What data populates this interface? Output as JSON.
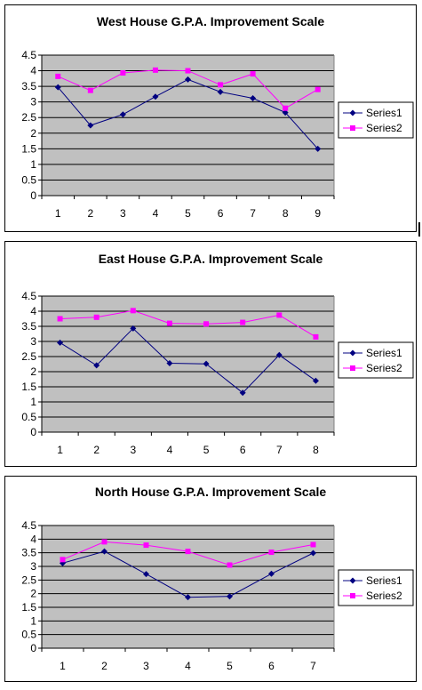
{
  "colors": {
    "series1": "#000080",
    "series2": "#FF00FF",
    "plot_bg": "#C0C0C0",
    "grid": "#000000"
  },
  "chart_data": [
    {
      "type": "line",
      "title": "West House G.P.A. Improvement Scale",
      "categories": [
        "1",
        "2",
        "3",
        "4",
        "5",
        "6",
        "7",
        "8",
        "9"
      ],
      "ylim": [
        0,
        4.5
      ],
      "yticks": [
        "0",
        "0.5",
        "1",
        "1.5",
        "2",
        "2.5",
        "3",
        "3.5",
        "4",
        "4.5"
      ],
      "grid": true,
      "legend": "right",
      "series": [
        {
          "name": "Series1",
          "values": [
            3.47,
            2.25,
            2.6,
            3.17,
            3.72,
            3.32,
            3.12,
            2.66,
            1.5
          ]
        },
        {
          "name": "Series2",
          "values": [
            3.82,
            3.37,
            3.93,
            4.02,
            4.0,
            3.55,
            3.9,
            2.8,
            3.4
          ]
        }
      ]
    },
    {
      "type": "line",
      "title": "East House G.P.A. Improvement Scale",
      "categories": [
        "1",
        "2",
        "3",
        "4",
        "5",
        "6",
        "7",
        "8"
      ],
      "ylim": [
        0,
        4.5
      ],
      "yticks": [
        "0",
        "0.5",
        "1",
        "1.5",
        "2",
        "2.5",
        "3",
        "3.5",
        "4",
        "4.5"
      ],
      "grid": true,
      "legend": "right",
      "series": [
        {
          "name": "Series1",
          "values": [
            2.96,
            2.21,
            3.43,
            2.28,
            2.26,
            1.3,
            2.55,
            1.7
          ]
        },
        {
          "name": "Series2",
          "values": [
            3.75,
            3.8,
            4.02,
            3.6,
            3.58,
            3.63,
            3.87,
            3.15
          ]
        }
      ]
    },
    {
      "type": "line",
      "title": "North House G.P.A. Improvement Scale",
      "categories": [
        "1",
        "2",
        "3",
        "4",
        "5",
        "6",
        "7"
      ],
      "ylim": [
        0,
        4.5
      ],
      "yticks": [
        "0",
        "0.5",
        "1",
        "1.5",
        "2",
        "2.5",
        "3",
        "3.5",
        "4",
        "4.5"
      ],
      "grid": true,
      "legend": "right",
      "series": [
        {
          "name": "Series1",
          "values": [
            3.12,
            3.55,
            2.72,
            1.87,
            1.9,
            2.73,
            3.49
          ]
        },
        {
          "name": "Series2",
          "values": [
            3.25,
            3.9,
            3.78,
            3.55,
            3.05,
            3.52,
            3.8
          ]
        }
      ]
    }
  ]
}
